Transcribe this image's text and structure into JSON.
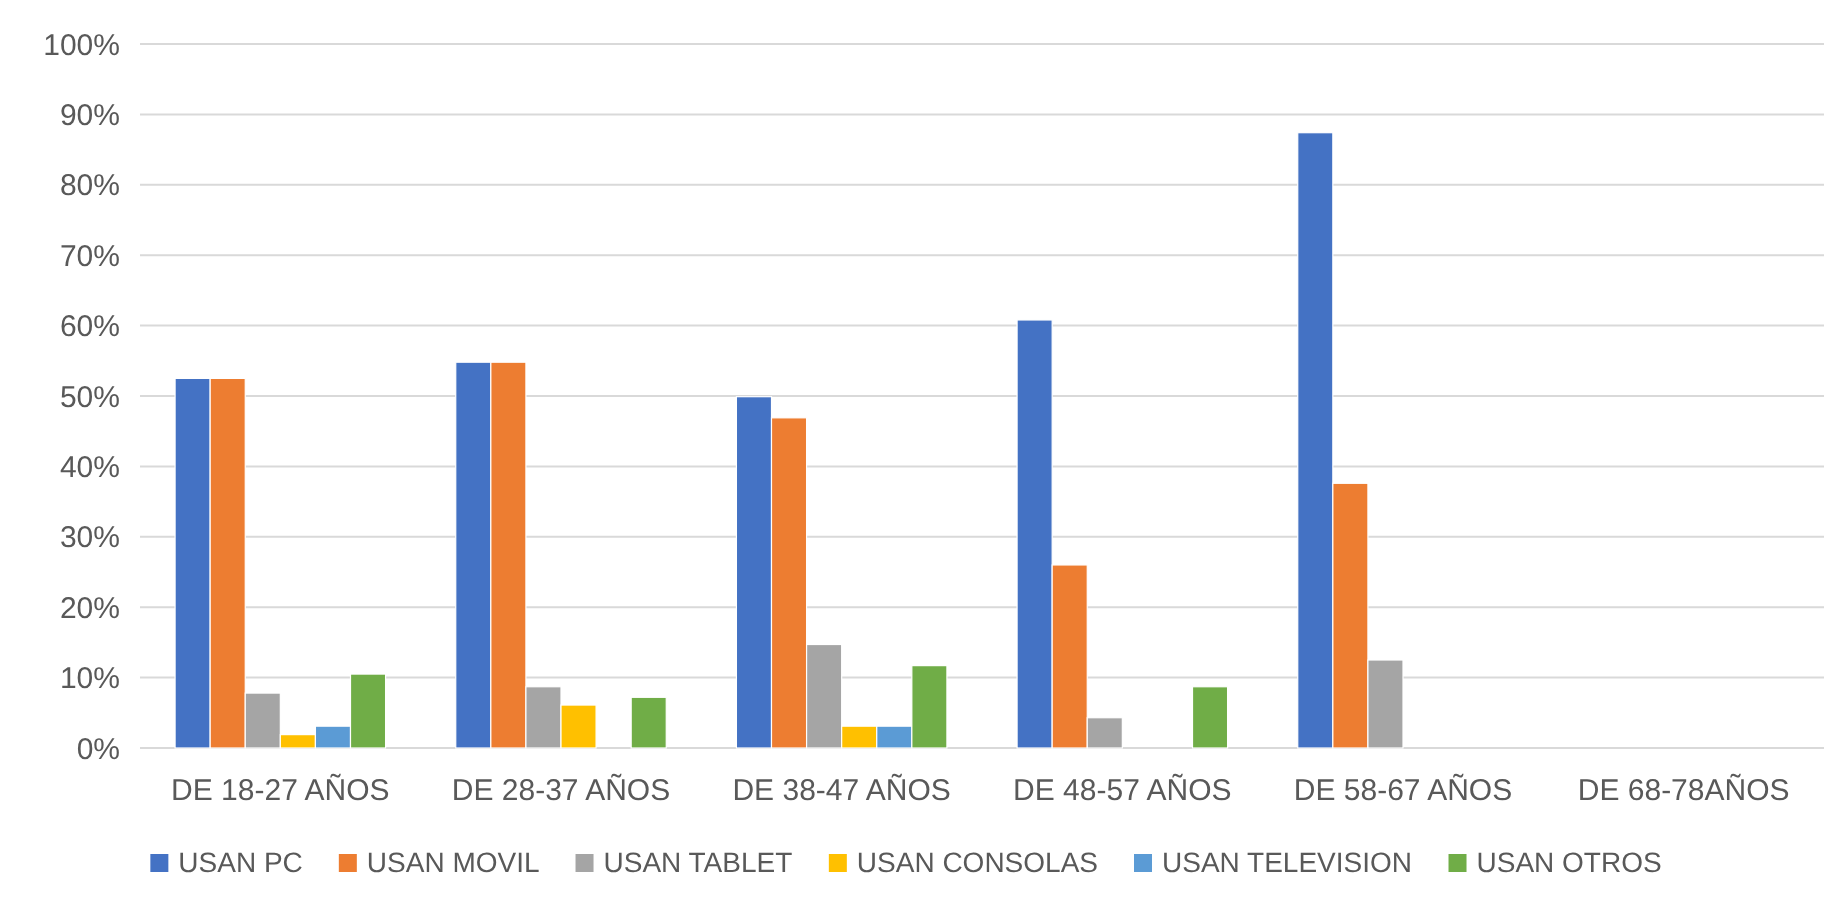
{
  "chart_data": {
    "type": "bar",
    "categories": [
      "DE 18-27 AÑOS",
      "DE 28-37 AÑOS",
      "DE 38-47 AÑOS",
      "DE 48-57 AÑOS",
      "DE 58-67 AÑOS",
      "DE 68-78AÑOS"
    ],
    "series": [
      {
        "name": "USAN PC",
        "color": "#4472c4",
        "values": [
          52.5,
          54.8,
          49.9,
          60.8,
          87.4,
          0
        ]
      },
      {
        "name": "USAN MOVIL",
        "color": "#ed7d31",
        "values": [
          52.5,
          54.8,
          46.9,
          26.0,
          37.6,
          0
        ]
      },
      {
        "name": "USAN TABLET",
        "color": "#a5a5a5",
        "values": [
          7.8,
          8.7,
          14.7,
          4.3,
          12.5,
          0
        ]
      },
      {
        "name": "USAN CONSOLAS",
        "color": "#ffc000",
        "values": [
          1.9,
          6.1,
          3.1,
          0,
          0,
          0
        ]
      },
      {
        "name": "USAN TELEVISION",
        "color": "#5b9bd5",
        "values": [
          3.1,
          0,
          3.1,
          0,
          0,
          0
        ]
      },
      {
        "name": "USAN OTROS",
        "color": "#70ad47",
        "values": [
          10.5,
          7.2,
          11.7,
          8.7,
          0,
          0
        ]
      }
    ],
    "ylim": [
      0,
      100
    ],
    "yticks": [
      {
        "value": 0,
        "label": "0%"
      },
      {
        "value": 10,
        "label": "10%"
      },
      {
        "value": 20,
        "label": "20%"
      },
      {
        "value": 30,
        "label": "30%"
      },
      {
        "value": 40,
        "label": "40%"
      },
      {
        "value": 50,
        "label": "50%"
      },
      {
        "value": 60,
        "label": "60%"
      },
      {
        "value": 70,
        "label": "70%"
      },
      {
        "value": 80,
        "label": "80%"
      },
      {
        "value": 90,
        "label": "90%"
      },
      {
        "value": 100,
        "label": "100%"
      }
    ],
    "grid": "y",
    "legend": "bottom"
  }
}
